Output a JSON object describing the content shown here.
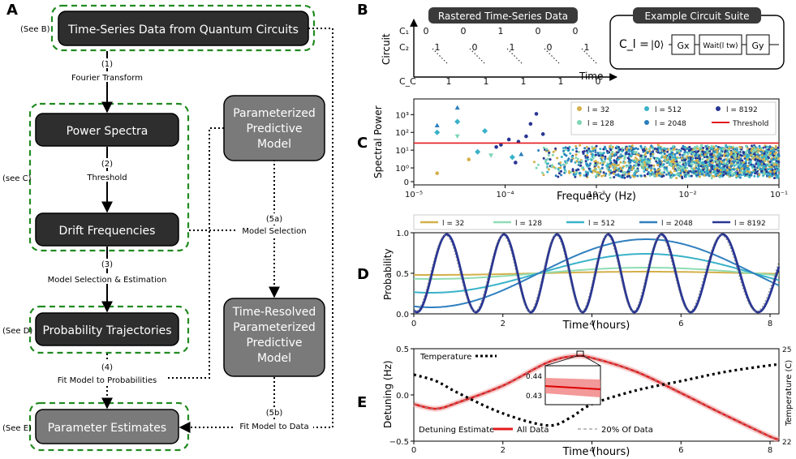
{
  "panels": {
    "A": "A",
    "B": "B",
    "C": "C",
    "D": "D",
    "E": "E"
  },
  "flow": {
    "time_series": "Time-Series Data from Quantum Circuits",
    "see_b": "(See B)",
    "step1_num": "(1)",
    "step1_label": "Fourier Transform",
    "power_spectra": "Power Spectra",
    "see_c": "(see C)",
    "step2_num": "(2)",
    "step2_label": "Threshold",
    "drift_freq": "Drift Frequencies",
    "step3_num": "(3)",
    "step3_label": "Model Selection & Estimation",
    "prob_traj": "Probability Trajectories",
    "see_d": "(See D)",
    "step4_num": "(4)",
    "step4_label": "Fit Model to Probabilities",
    "param_est": "Parameter Estimates",
    "see_e": "(See E)",
    "ppm_lines": [
      "Parameterized",
      "Predictive",
      "Model"
    ],
    "step5a_num": "(5a)",
    "step5a_label": "Model Selection",
    "trppm_lines": [
      "Time-Resolved",
      "Parameterized",
      "Predictive",
      "Model"
    ],
    "step5b_num": "(5b)",
    "step5b_label": "Fit Model to Data"
  },
  "panel_b": {
    "raster_title": "Rastered Time-Series Data",
    "suite_title": "Example Circuit Suite",
    "y_axis": "Circuit",
    "x_axis": "Time",
    "rows": [
      {
        "label": "C₁",
        "bits": [
          "0",
          "0",
          "1",
          "0",
          "0"
        ]
      },
      {
        "label": "C₂",
        "bits": [
          "1",
          "0",
          "1",
          "0",
          "1"
        ]
      },
      {
        "label": "C_C",
        "bits": [
          "1",
          "1",
          "1",
          "1",
          "0"
        ]
      }
    ],
    "circuit_lhs": "C_l =",
    "ket": "|0⟩",
    "gx": "Gx",
    "wait": "Wait(l tw)",
    "gy": "Gy"
  },
  "chart_data": [
    {
      "id": "C",
      "type": "scatter",
      "xlabel": "Frequency (Hz)",
      "ylabel": "Spectral Power",
      "xscale": "log",
      "xlim": [
        1e-05,
        0.1
      ],
      "x_ticks": [
        "10⁻⁵",
        "10⁻⁴",
        "10⁻³",
        "10⁻²",
        "10⁻¹"
      ],
      "y_ticks": [
        "0",
        "10⁰",
        "10¹",
        "10²",
        "10³"
      ],
      "threshold": 25,
      "legend_position": "top-right",
      "series": [
        {
          "name": "l = 32",
          "color": "#d4b04a",
          "marker": "circle"
        },
        {
          "name": "l = 128",
          "color": "#7fd6b6",
          "marker": "triangle-down"
        },
        {
          "name": "l = 512",
          "color": "#39b2c9",
          "marker": "diamond"
        },
        {
          "name": "l = 2048",
          "color": "#2a7ebd",
          "marker": "triangle-up"
        },
        {
          "name": "l = 8192",
          "color": "#283593",
          "marker": "circle"
        },
        {
          "name": "Threshold",
          "color": "#e41a1c",
          "marker": "line"
        }
      ],
      "points": [
        {
          "s": 4,
          "x": 9e-05,
          "y": 20
        },
        {
          "s": 4,
          "x": 0.00011,
          "y": 40
        },
        {
          "s": 4,
          "x": 0.00014,
          "y": 30
        },
        {
          "s": 4,
          "x": 0.00019,
          "y": 300
        },
        {
          "s": 4,
          "x": 0.00022,
          "y": 1100
        },
        {
          "s": 4,
          "x": 8e-05,
          "y": 15
        },
        {
          "s": 4,
          "x": 0.00017,
          "y": 60
        },
        {
          "s": 4,
          "x": 0.00026,
          "y": 80
        },
        {
          "s": 2,
          "x": 1.8e-05,
          "y": 100
        },
        {
          "s": 2,
          "x": 3e-05,
          "y": 400
        },
        {
          "s": 2,
          "x": 6e-05,
          "y": 120
        },
        {
          "s": 3,
          "x": 3e-05,
          "y": 2500
        },
        {
          "s": 3,
          "x": 1.8e-05,
          "y": 250
        },
        {
          "s": 0,
          "x": 1.8e-05,
          "y": 0.5
        },
        {
          "s": 1,
          "x": 3e-05,
          "y": 60
        },
        {
          "s": 2,
          "x": 5e-05,
          "y": 8
        },
        {
          "s": 0,
          "x": 4e-05,
          "y": 3
        },
        {
          "s": 1,
          "x": 7e-05,
          "y": 5
        },
        {
          "s": 2,
          "x": 0.00012,
          "y": 4
        },
        {
          "s": 3,
          "x": 0.00015,
          "y": 6
        },
        {
          "s": 4,
          "x": 0.00013,
          "y": 2
        }
      ]
    },
    {
      "id": "D",
      "type": "line",
      "xlabel": "Time (hours)",
      "ylabel": "Probability",
      "xlim": [
        0,
        8.2
      ],
      "ylim": [
        0,
        1
      ],
      "x_ticks": [
        "0",
        "2",
        "4",
        "6",
        "8"
      ],
      "y_ticks": [
        "0.0",
        "0.5",
        "1.0"
      ],
      "legend_position": "top",
      "series": [
        {
          "name": "l = 32",
          "color": "#d4b04a",
          "amp": 0.02,
          "omega": 0.65
        },
        {
          "name": "l = 128",
          "color": "#8fdcb4",
          "amp": 0.07,
          "omega": 0.65
        },
        {
          "name": "l = 512",
          "color": "#39b2c9",
          "amp": 0.24,
          "omega": 0.65
        },
        {
          "name": "l = 2048",
          "color": "#2f7fbf",
          "amp": 0.42,
          "omega": 0.65
        },
        {
          "name": "l = 8192",
          "color": "#283593",
          "amp": 0.48,
          "omega": 4.9
        }
      ]
    },
    {
      "id": "E",
      "type": "line",
      "xlabel": "Time (hours)",
      "ylabel": "Detuning (Hz)",
      "ylabel_right": "Temperature (C)",
      "xlim": [
        0,
        8.2
      ],
      "ylim": [
        -0.5,
        0.5
      ],
      "y_ticks": [
        "−0.5",
        "0.0",
        "0.5"
      ],
      "x_ticks": [
        "0",
        "2",
        "4",
        "6",
        "8"
      ],
      "right_ticks": [
        "22",
        "25"
      ],
      "legend_temperature": "Temperature",
      "legend_detuning": "Detuning Estimate",
      "legend_all": "All Data",
      "legend_20": "20% Of Data",
      "inset_ticks": [
        "0.44",
        "0.43"
      ],
      "detuning": [
        [
          0,
          -0.1
        ],
        [
          0.5,
          -0.15
        ],
        [
          1,
          -0.08
        ],
        [
          2,
          0.1
        ],
        [
          3,
          0.35
        ],
        [
          3.6,
          0.42
        ],
        [
          4,
          0.4
        ],
        [
          5,
          0.25
        ],
        [
          6,
          0.02
        ],
        [
          7,
          -0.22
        ],
        [
          8,
          -0.45
        ],
        [
          8.2,
          -0.48
        ]
      ],
      "temperature": [
        [
          0,
          0.22
        ],
        [
          0.5,
          0.15
        ],
        [
          1,
          0.02
        ],
        [
          2,
          -0.2
        ],
        [
          3,
          -0.33
        ],
        [
          3.5,
          -0.25
        ],
        [
          4,
          -0.1
        ],
        [
          5,
          0.05
        ],
        [
          6,
          0.15
        ],
        [
          7,
          0.25
        ],
        [
          8,
          0.32
        ],
        [
          8.2,
          0.33
        ]
      ]
    }
  ]
}
